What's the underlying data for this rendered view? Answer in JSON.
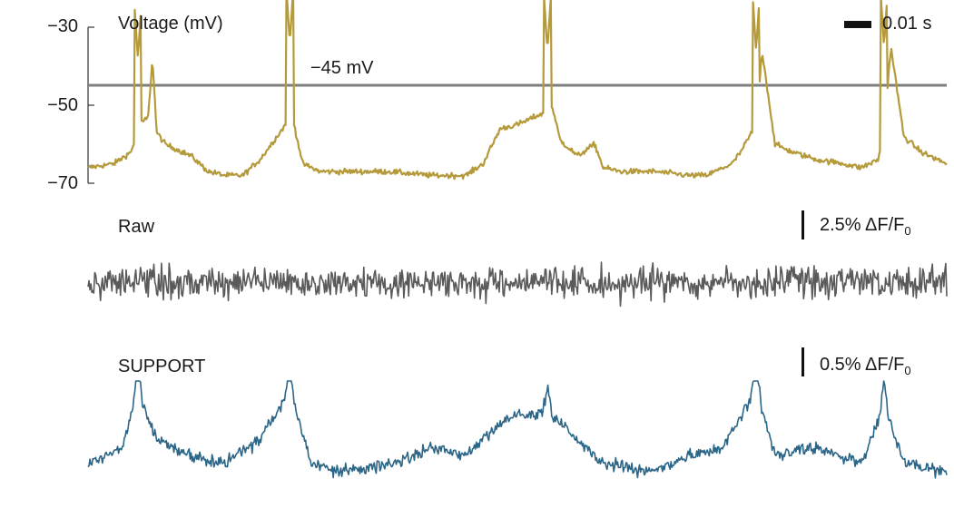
{
  "chart_data": [
    {
      "type": "line",
      "title": "Voltage (mV)",
      "ylim": [
        -70,
        -30
      ],
      "yticks": [
        "−30",
        "−50",
        "−70"
      ],
      "yticks_values": [
        -30,
        -50,
        -70
      ],
      "threshold_label": "−45 mV",
      "threshold_value": -45,
      "time_scale_label": "0.01 s",
      "series": [
        {
          "color": "#b59a3c",
          "baseline": -67,
          "x": [
            0.0,
            0.03,
            0.05,
            0.06,
            0.07,
            0.075,
            0.08,
            0.09,
            0.1,
            0.12,
            0.14,
            0.16,
            0.18,
            0.2,
            0.22,
            0.23,
            0.235,
            0.24,
            0.25,
            0.27,
            0.3,
            0.35,
            0.4,
            0.44,
            0.46,
            0.48,
            0.5,
            0.51,
            0.52,
            0.53,
            0.535,
            0.54,
            0.55,
            0.57,
            0.59,
            0.6,
            0.62,
            0.66,
            0.7,
            0.72,
            0.75,
            0.76,
            0.778,
            0.785,
            0.8,
            0.82,
            0.85,
            0.88,
            0.9,
            0.92,
            0.927,
            0.935,
            0.95,
            0.97,
            1.0
          ],
          "values": [
            -66,
            -65,
            -62,
            -55,
            -53,
            -38,
            -57,
            -60,
            -61,
            -63,
            -67,
            -68,
            -68,
            -64,
            -58,
            -55,
            -34,
            -55,
            -65,
            -67,
            -67,
            -67,
            -68,
            -68,
            -65,
            -56,
            -55,
            -54,
            -53,
            -52,
            -36,
            -50,
            -59,
            -63,
            -60,
            -66,
            -67,
            -67,
            -68,
            -68,
            -65,
            -62,
            -55,
            -36,
            -60,
            -62,
            -64,
            -65,
            -66,
            -64,
            -56,
            -35,
            -58,
            -62,
            -65
          ],
          "spike_x": [
            0.058,
            0.235,
            0.535,
            0.778,
            0.927
          ],
          "spike_peaks": [
            -38,
            -34,
            -36,
            -36,
            -35
          ]
        }
      ]
    },
    {
      "type": "line",
      "title": "Raw",
      "scale_bar_label": "2.5% ΔF/F",
      "scale_bar_sub": "0",
      "series": [
        {
          "color": "#5a5a5a",
          "x": [
            0,
            1
          ],
          "values": [
            0,
            0
          ]
        }
      ]
    },
    {
      "type": "line",
      "title": "SUPPORT",
      "scale_bar_label": "0.5% ΔF/F",
      "scale_bar_sub": "0",
      "series": [
        {
          "color": "#2b6688",
          "spike_x": [
            0.058,
            0.235,
            0.535,
            0.778,
            0.927
          ],
          "x": [
            0.0,
            0.04,
            0.058,
            0.08,
            0.12,
            0.16,
            0.2,
            0.235,
            0.26,
            0.3,
            0.36,
            0.4,
            0.44,
            0.48,
            0.5,
            0.535,
            0.56,
            0.6,
            0.66,
            0.7,
            0.74,
            0.778,
            0.8,
            0.85,
            0.9,
            0.927,
            0.95,
            1.0
          ],
          "values": [
            0.1,
            0.3,
            1.0,
            0.4,
            0.2,
            0.1,
            0.4,
            1.0,
            0.1,
            0.0,
            0.1,
            0.3,
            0.2,
            0.6,
            0.7,
            0.7,
            0.5,
            0.1,
            0.0,
            0.2,
            0.3,
            1.0,
            0.2,
            0.3,
            0.1,
            0.8,
            0.1,
            0.0
          ]
        }
      ]
    }
  ]
}
